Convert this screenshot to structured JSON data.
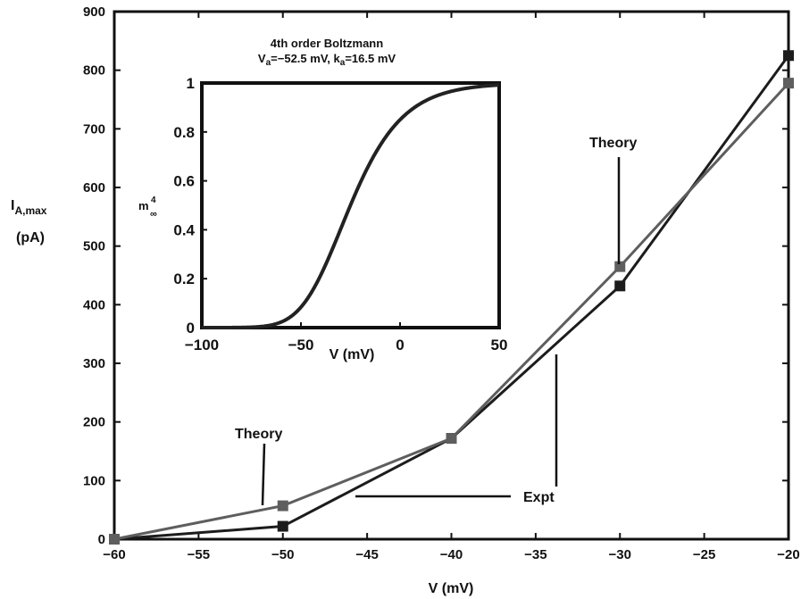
{
  "chart_data": [
    {
      "type": "line",
      "xlabel": "V (mV)",
      "ylabel": "I_A,max (pA)",
      "xlim": [
        -60,
        -20
      ],
      "ylim": [
        0,
        900
      ],
      "x_ticks": [
        "−60",
        "−55",
        "−50",
        "−45",
        "−40",
        "−35",
        "−30",
        "−25",
        "−20"
      ],
      "y_ticks": [
        "0",
        "100",
        "200",
        "300",
        "400",
        "500",
        "600",
        "700",
        "800",
        "900"
      ],
      "grid": false,
      "series": [
        {
          "name": "Expt",
          "color": "#1c1c1c",
          "x": [
            -60,
            -50,
            -40,
            -30,
            -20
          ],
          "y": [
            0,
            22,
            172,
            432,
            825
          ]
        },
        {
          "name": "Theory",
          "color": "#5e5e5e",
          "x": [
            -60,
            -50,
            -40,
            -30,
            -20
          ],
          "y": [
            0,
            57,
            172,
            465,
            778
          ]
        }
      ],
      "annotations": [
        "Theory",
        "Theory",
        "Expt"
      ]
    },
    {
      "type": "line",
      "title": "4th order Boltzmann",
      "subtitle": "Va=−52.5 mV, ka=16.5 mV",
      "xlabel": "V (mV)",
      "ylabel": "m∞^4",
      "xlim": [
        -100,
        50
      ],
      "ylim": [
        0,
        1
      ],
      "x_ticks": [
        "−100",
        "−50",
        "0",
        "50"
      ],
      "y_ticks": [
        "0",
        "0.2",
        "0.4",
        "0.6",
        "0.8",
        "1"
      ],
      "curve": {
        "formula": "1/(1+exp((Va−V)/ka))^4",
        "Va": -52.5,
        "ka": 16.5,
        "color": "#222222"
      }
    }
  ],
  "labels": {
    "ylabel_main": "I",
    "ylabel_sub": "A,max",
    "ylabel_unit": "(pA)",
    "xlabel_main": "V (mV)",
    "theory_top": "Theory",
    "theory_bottom": "Theory",
    "expt": "Expt",
    "inset_title": "4th order Boltzmann",
    "inset_sub_v": "V",
    "inset_sub_va_sub": "a",
    "inset_sub_mid": "=−52.5 mV, k",
    "inset_sub_ka_sub": "a",
    "inset_sub_end": "=16.5 mV",
    "inset_ylabel_m": "m",
    "inset_ylabel_sup": "4",
    "inset_ylabel_sub": "∞",
    "inset_xlabel": "V (mV)"
  }
}
